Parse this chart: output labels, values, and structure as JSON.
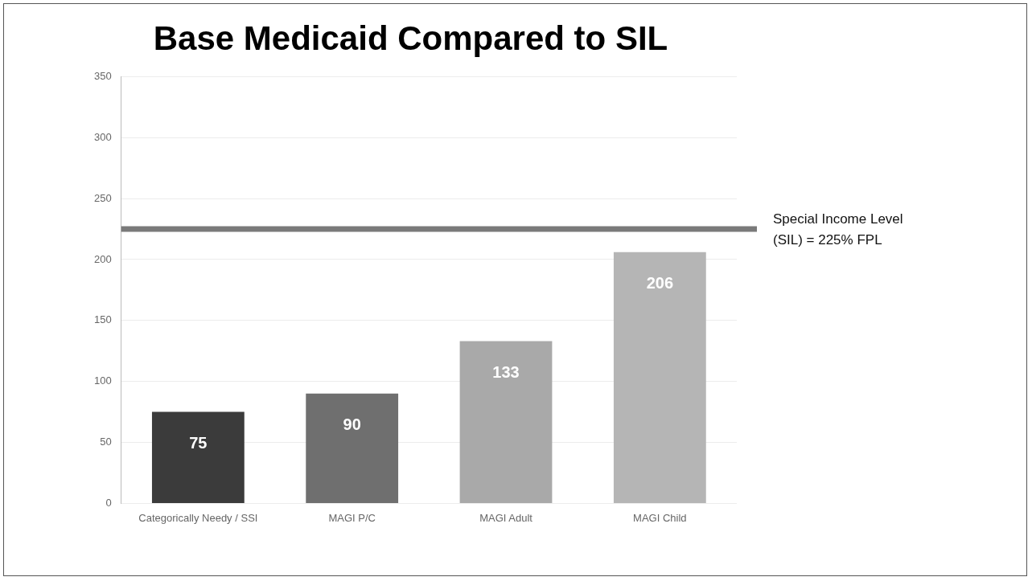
{
  "chart_data": {
    "type": "bar",
    "title": "Base Medicaid Compared to SIL",
    "categories": [
      "Categorically Needy / SSI",
      "MAGI P/C",
      "MAGI Adult",
      "MAGI Child"
    ],
    "values": [
      75,
      90,
      133,
      206
    ],
    "colors": [
      "#3b3b3b",
      "#6f6f6f",
      "#a9a9a9",
      "#b5b5b5"
    ],
    "ylim": [
      0,
      350
    ],
    "yticks": [
      0,
      50,
      100,
      150,
      200,
      250,
      300,
      350
    ],
    "grid": "y",
    "legend": false,
    "data_labels": true,
    "ref_lines": [
      {
        "axis": "y",
        "value": 225,
        "label": "Special Income Level (SIL) = 225% FPL",
        "color": "#7a7a7a"
      }
    ]
  }
}
